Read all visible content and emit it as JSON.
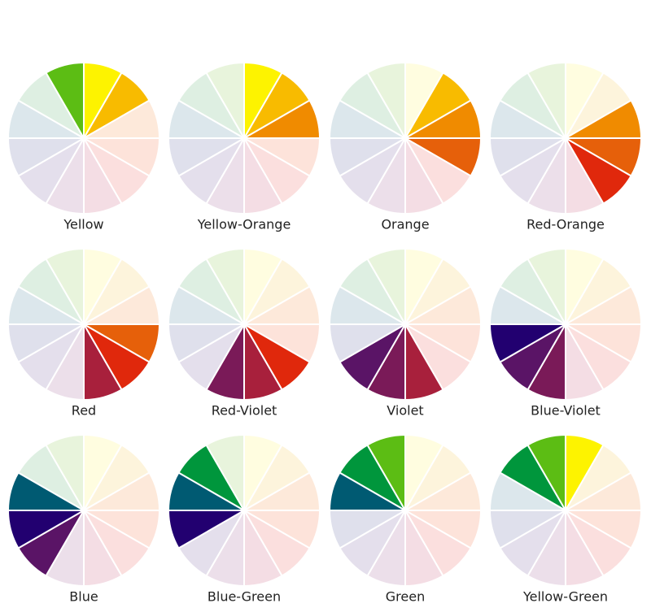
{
  "wheels": [
    {
      "label": "Yellow"
    },
    {
      "label": "Yellow-Orange"
    },
    {
      "label": "Orange"
    },
    {
      "label": "Red-Orange"
    },
    {
      "label": "Red"
    },
    {
      "label": "Red-Violet"
    },
    {
      "label": "Violet"
    },
    {
      "label": "Blue-Violet"
    },
    {
      "label": "Blue"
    },
    {
      "label": "Blue-Green"
    },
    {
      "label": "Green"
    },
    {
      "label": "Yellow-Green"
    }
  ]
}
